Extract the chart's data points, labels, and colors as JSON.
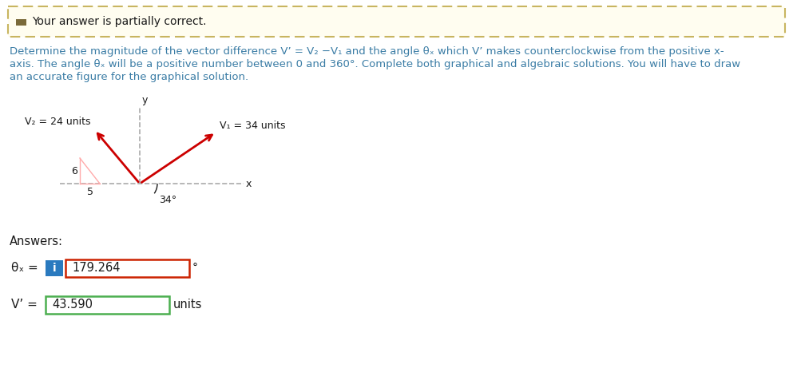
{
  "bg_color": "#fffdf0",
  "border_color": "#c8b560",
  "banner_text": "Your answer is partially correct.",
  "problem_line1": "Determine the magnitude of the vector difference V’ = V₂ −V₁ and the angle θₓ which V’ makes counterclockwise from the positive x-",
  "problem_line2": "axis. The angle θₓ will be a positive number between 0 and 360°. Complete both graphical and algebraic solutions. You will have to draw",
  "problem_line3": "an accurate figure for the graphical solution.",
  "v2_label": "V₂ = 24 units",
  "v1_label": "V₁ = 34 units",
  "angle_label": "34°",
  "y_label": "y",
  "x_label": "x",
  "num_6": "6",
  "num_5": "5",
  "answers_label": "Answers:",
  "theta_label": "θₓ =",
  "vprime_label": "V’ =",
  "theta_value": "179.264",
  "vprime_value": "43.590",
  "degree_symbol": "°",
  "units_label": "units",
  "text_color": "#3a7ca5",
  "dark_text": "#1a1a1a",
  "arrow_color": "#cc0000",
  "page_bg": "#ffffff",
  "banner_bg": "#fffdf0",
  "icon_color": "#7a6a3a",
  "blue_btn": "#2a7abf",
  "red_border": "#cc2200",
  "green_border": "#4caf50"
}
